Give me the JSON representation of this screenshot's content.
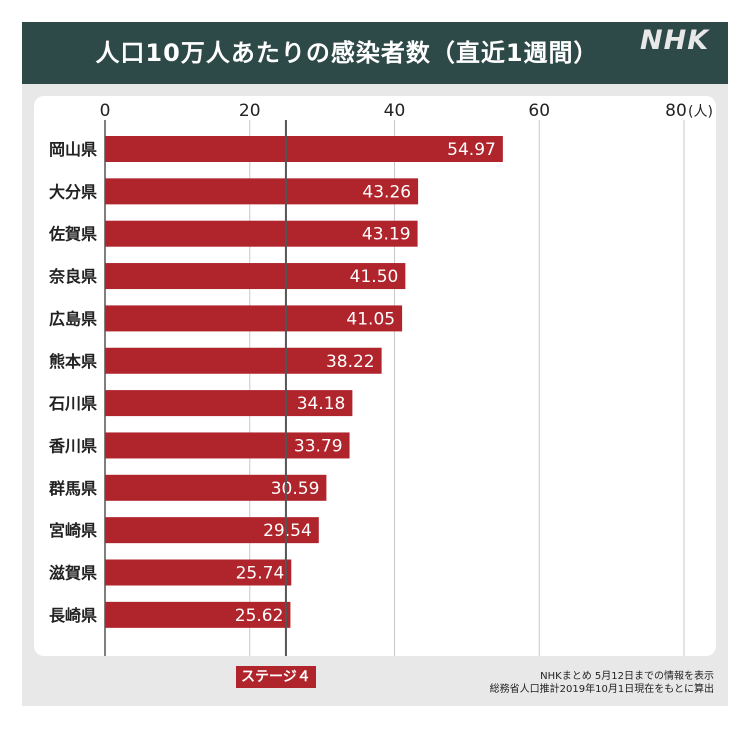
{
  "header": {
    "title": "人口10万人あたりの感染者数（直近1週間）",
    "logo": "NHK"
  },
  "colors": {
    "header_bg": "#2e4a48",
    "bar": "#b0242c",
    "frame_bg": "#e8e8e8"
  },
  "chart_data": {
    "type": "bar",
    "orientation": "horizontal",
    "categories": [
      "岡山県",
      "大分県",
      "佐賀県",
      "奈良県",
      "広島県",
      "熊本県",
      "石川県",
      "香川県",
      "群馬県",
      "宮崎県",
      "滋賀県",
      "長崎県"
    ],
    "values": [
      54.97,
      43.26,
      43.19,
      41.5,
      41.05,
      38.22,
      34.18,
      33.79,
      30.59,
      29.54,
      25.74,
      25.62
    ],
    "value_labels": [
      "54.97",
      "43.26",
      "43.19",
      "41.50",
      "41.05",
      "38.22",
      "34.18",
      "33.79",
      "30.59",
      "29.54",
      "25.74",
      "25.62"
    ],
    "xlim": [
      0,
      80
    ],
    "ticks": [
      0,
      20,
      40,
      60,
      80
    ],
    "tick_labels": [
      "0",
      "20",
      "40",
      "60",
      "80"
    ],
    "unit": "(人)",
    "reference_line": {
      "value": 25,
      "label": "ステージ４"
    },
    "grid": true,
    "legend": "none"
  },
  "footer": {
    "source_line1": "NHKまとめ 5月12日までの情報を表示",
    "source_line2": "総務省人口推計2019年10月1日現在をもとに算出"
  }
}
